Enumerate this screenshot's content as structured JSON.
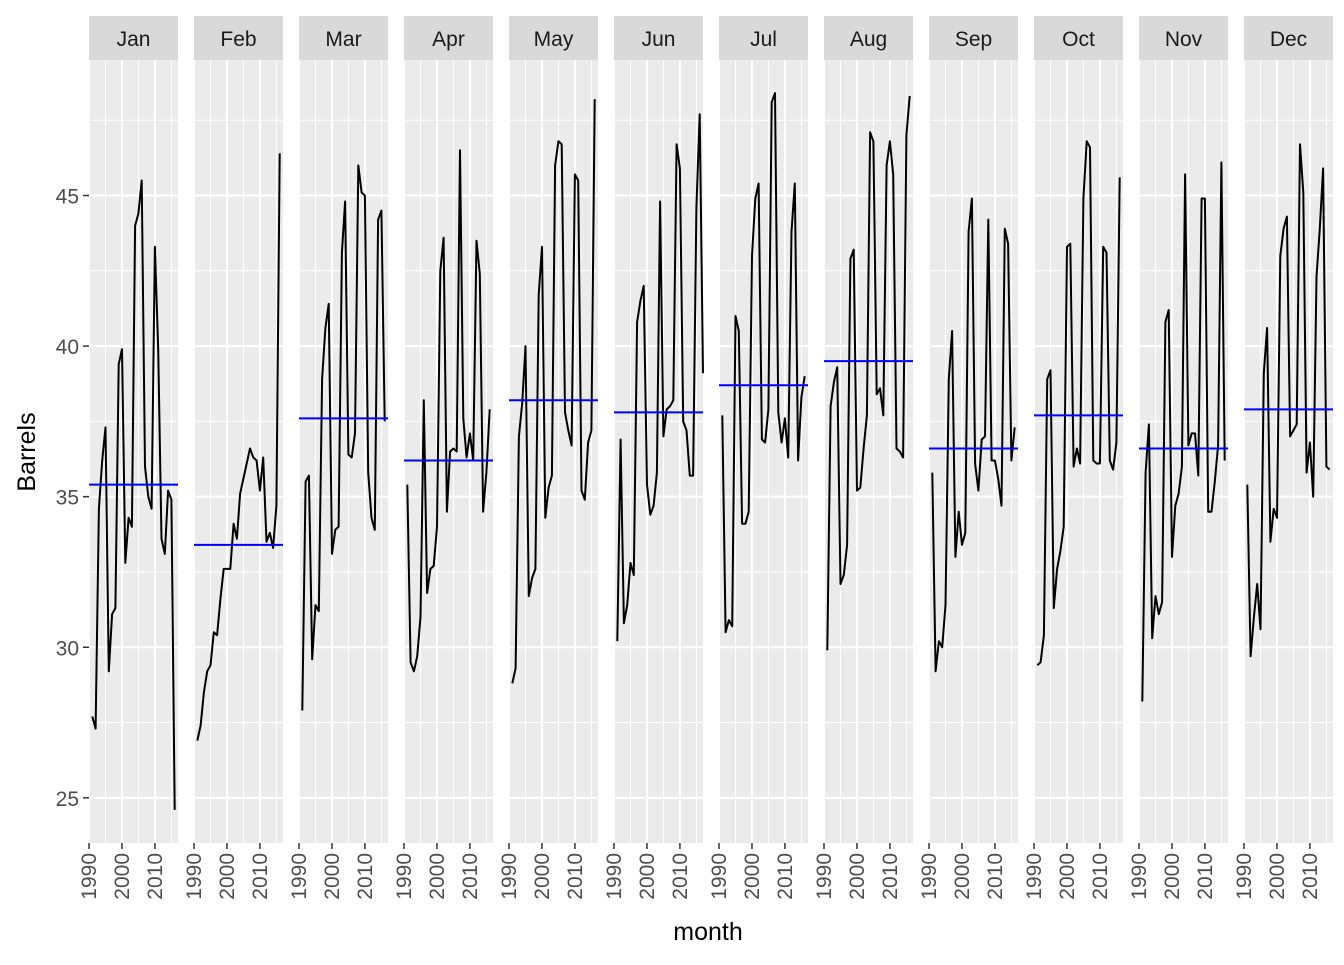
{
  "chart_data": {
    "type": "line",
    "facet_by": "month",
    "xlabel": "month",
    "ylabel": "Barrels",
    "x_ticks": [
      1990,
      2000,
      2010
    ],
    "xlim": [
      1990,
      2017
    ],
    "y_ticks": [
      25,
      30,
      35,
      40,
      45
    ],
    "ylim": [
      23.5,
      49.5
    ],
    "grid": true,
    "colors": {
      "line": "#000000",
      "mean_line": "#0000ff",
      "panel_background": "#ebebeb",
      "strip_background": "#d9d9d9",
      "grid": "#ffffff"
    },
    "x_years": [
      1991,
      1992,
      1993,
      1994,
      1995,
      1996,
      1997,
      1998,
      1999,
      2000,
      2001,
      2002,
      2003,
      2004,
      2005,
      2006,
      2007,
      2008,
      2009,
      2010,
      2011,
      2012,
      2013,
      2014,
      2015,
      2016,
      2017
    ],
    "panels": [
      {
        "month": "Jan",
        "mean": 35.4,
        "values": [
          27.7,
          27.3,
          34.6,
          36.2,
          37.3,
          29.2,
          31.1,
          31.3,
          39.4,
          39.9,
          32.8,
          34.3,
          34.0,
          44.0,
          44.4,
          45.5,
          36.0,
          35.0,
          34.6,
          43.3,
          39.9,
          33.6,
          33.1,
          35.2,
          34.9,
          24.6,
          null
        ]
      },
      {
        "month": "Feb",
        "mean": 33.4,
        "values": [
          26.9,
          27.4,
          28.5,
          29.2,
          29.4,
          30.5,
          30.4,
          31.6,
          32.6,
          32.6,
          32.6,
          34.1,
          33.6,
          35.1,
          35.6,
          36.1,
          36.6,
          36.3,
          36.2,
          35.2,
          36.3,
          33.5,
          33.8,
          33.3,
          34.7,
          46.4,
          null
        ]
      },
      {
        "month": "Mar",
        "mean": 37.6,
        "values": [
          27.9,
          35.5,
          35.7,
          29.6,
          31.4,
          31.2,
          38.9,
          40.6,
          41.4,
          33.1,
          33.9,
          34.0,
          43.1,
          44.8,
          36.4,
          36.3,
          37.1,
          46.0,
          45.1,
          45.0,
          35.8,
          34.3,
          33.9,
          44.2,
          44.5,
          37.5,
          null
        ]
      },
      {
        "month": "Apr",
        "mean": 36.2,
        "values": [
          35.4,
          29.5,
          29.2,
          29.7,
          31.0,
          38.2,
          31.8,
          32.6,
          32.7,
          34.0,
          42.5,
          43.6,
          34.5,
          36.5,
          36.6,
          36.5,
          46.5,
          37.6,
          36.3,
          37.1,
          36.2,
          43.5,
          42.4,
          34.5,
          35.8,
          37.9,
          null
        ]
      },
      {
        "month": "May",
        "mean": 38.2,
        "values": [
          28.8,
          29.3,
          37.0,
          38.1,
          40.0,
          31.7,
          32.3,
          32.6,
          41.7,
          43.3,
          34.3,
          35.3,
          35.7,
          46.0,
          46.8,
          46.7,
          37.8,
          37.2,
          36.7,
          45.7,
          45.5,
          35.2,
          34.9,
          36.8,
          37.2,
          48.2,
          null
        ]
      },
      {
        "month": "Jun",
        "mean": 37.8,
        "values": [
          30.2,
          36.9,
          30.8,
          31.4,
          32.8,
          32.4,
          40.8,
          41.5,
          42.0,
          35.4,
          34.4,
          34.7,
          35.8,
          44.8,
          37.0,
          37.9,
          38.0,
          38.2,
          46.7,
          45.9,
          37.5,
          37.2,
          35.7,
          35.7,
          44.6,
          47.7,
          39.1
        ]
      },
      {
        "month": "Jul",
        "mean": 38.7,
        "values": [
          37.7,
          30.5,
          30.9,
          30.7,
          41.0,
          40.5,
          34.1,
          34.1,
          34.5,
          43.0,
          44.9,
          45.4,
          36.9,
          36.8,
          37.9,
          48.1,
          48.4,
          37.8,
          36.8,
          37.6,
          36.3,
          43.8,
          45.4,
          36.2,
          38.3,
          39.0,
          null
        ]
      },
      {
        "month": "Aug",
        "mean": 39.5,
        "values": [
          29.9,
          38.0,
          38.8,
          39.3,
          32.1,
          32.4,
          33.4,
          42.9,
          43.2,
          35.2,
          35.3,
          36.6,
          37.7,
          47.1,
          46.8,
          38.4,
          38.6,
          37.7,
          46.0,
          46.8,
          45.7,
          36.6,
          36.5,
          36.3,
          47.0,
          48.3,
          null
        ]
      },
      {
        "month": "Sep",
        "mean": 36.6,
        "values": [
          35.8,
          29.2,
          30.2,
          30.0,
          31.4,
          38.9,
          40.5,
          33.0,
          34.5,
          33.4,
          33.8,
          43.8,
          44.9,
          36.1,
          35.2,
          36.9,
          37.0,
          44.2,
          36.2,
          36.2,
          35.6,
          34.7,
          43.9,
          43.4,
          36.2,
          37.3,
          null
        ]
      },
      {
        "month": "Oct",
        "mean": 37.7,
        "values": [
          29.4,
          29.5,
          30.4,
          38.9,
          39.2,
          31.3,
          32.6,
          33.2,
          34.0,
          43.3,
          43.4,
          36.0,
          36.6,
          36.1,
          44.9,
          46.8,
          46.6,
          36.2,
          36.1,
          36.1,
          43.3,
          43.1,
          36.2,
          35.9,
          36.8,
          45.6,
          null
        ]
      },
      {
        "month": "Nov",
        "mean": 36.6,
        "values": [
          28.2,
          35.8,
          37.4,
          30.3,
          31.7,
          31.1,
          31.5,
          40.8,
          41.2,
          33.0,
          34.7,
          35.1,
          36.0,
          45.7,
          36.7,
          37.1,
          37.1,
          35.7,
          44.9,
          44.9,
          34.5,
          34.5,
          35.5,
          36.7,
          46.1,
          36.2,
          null
        ]
      },
      {
        "month": "Dec",
        "mean": 37.9,
        "values": [
          35.4,
          29.7,
          31.0,
          32.1,
          30.6,
          39.1,
          40.6,
          33.5,
          34.6,
          34.3,
          43.0,
          43.9,
          44.3,
          37.0,
          37.2,
          37.4,
          46.7,
          45.1,
          35.8,
          36.8,
          35.0,
          42.3,
          43.9,
          45.9,
          36.0,
          35.9,
          null
        ]
      }
    ]
  }
}
